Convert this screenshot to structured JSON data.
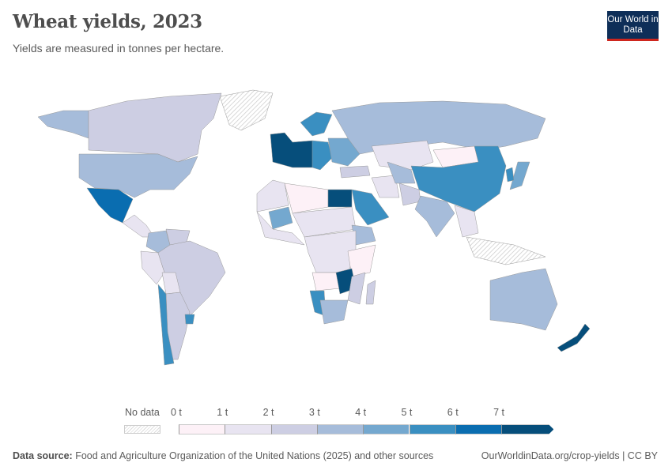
{
  "header": {
    "title": "Wheat yields, 2023",
    "subtitle": "Yields are measured in tonnes per hectare.",
    "logo": "Our World in Data"
  },
  "legend": {
    "no_data_label": "No data",
    "ticks": [
      "0 t",
      "1 t",
      "2 t",
      "3 t",
      "4 t",
      "5 t",
      "6 t",
      "7 t"
    ],
    "colors": [
      "#fdf1f7",
      "#e8e4f1",
      "#cdcee3",
      "#a6bcda",
      "#74a8cf",
      "#3a8fc1",
      "#0a6db0",
      "#064e7b"
    ],
    "no_data_color": "#e6e6e6"
  },
  "footer": {
    "source_label": "Data source:",
    "source_text": "Food and Agriculture Organization of the United Nations (2025) and other sources",
    "url_license": "OurWorldinData.org/crop-yields | CC BY"
  },
  "map_data": {
    "unit": "t/ha",
    "regions": {
      "Alaska": 3.5,
      "Canada": 2.5,
      "Greenland": null,
      "United States": 3.5,
      "Mexico": 6.5,
      "Central America": 1.5,
      "Colombia": 3.5,
      "Venezuela": 2.5,
      "Peru": 1.5,
      "Brazil": 2.5,
      "Bolivia": 1.5,
      "Argentina": 2.5,
      "Chile": 5.5,
      "Uruguay": 5.5,
      "Western Europe": 7.5,
      "Central Europe": 5.5,
      "Eastern Europe": 4.5,
      "Scandinavia": 5.5,
      "Russia": 3.5,
      "Kazakhstan": 1.5,
      "Mongolia": 0.5,
      "China": 5.5,
      "Japan": 4.5,
      "Korea": 5.5,
      "Turkey": 2.5,
      "Iran": 1.5,
      "Central Asia": 3.5,
      "Afghanistan/Pakistan": 2.5,
      "India": 3.5,
      "Southeast Asia": 1.5,
      "North Africa West": 1.5,
      "Algeria/Libya": 0.5,
      "Egypt": 7.5,
      "Saudi Arabia": 5.5,
      "West Africa": 1.5,
      "Mali": 4.5,
      "Sahel": 1.5,
      "Ethiopia": 3.5,
      "Central Africa": 1.5,
      "East Africa": 0.5,
      "Angola/DRC South": 0.5,
      "Zambia/Zimbabwe": 7.5,
      "Namibia": 5.5,
      "South Africa": 3.5,
      "Mozambique": 2.5,
      "Madagascar": 2.5,
      "Indonesia": null,
      "Australia": 3.5,
      "New Zealand": 7.5
    }
  }
}
